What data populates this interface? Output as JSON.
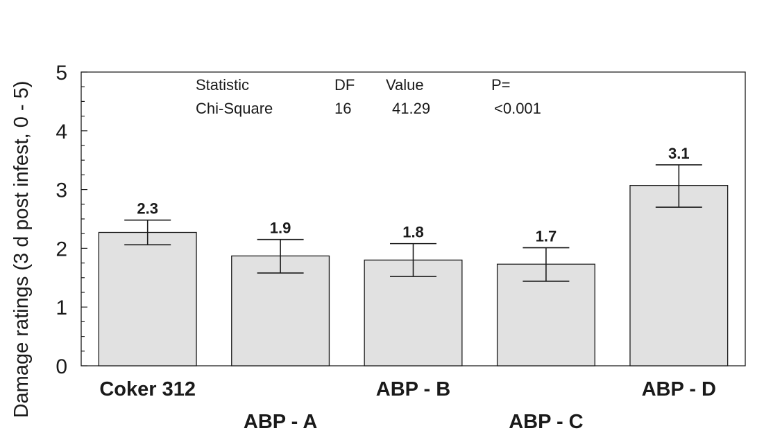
{
  "chart_data": {
    "type": "bar",
    "ylabel": "Damage ratings (3 d  post infest, 0 - 5)",
    "ylim": [
      0,
      5
    ],
    "yticks": [
      "0",
      "1",
      "2",
      "3",
      "4",
      "5"
    ],
    "minor_ticks_per_major": 4,
    "categories": [
      "Coker 312",
      "ABP - A",
      "ABP - B",
      "ABP - C",
      "ABP - D"
    ],
    "values": [
      2.27,
      1.87,
      1.8,
      1.73,
      3.07
    ],
    "error_low": [
      2.06,
      1.58,
      1.52,
      1.44,
      2.7
    ],
    "error_high": [
      2.48,
      2.15,
      2.08,
      2.01,
      3.42
    ],
    "data_labels": [
      "2.3",
      "1.9",
      "1.8",
      "1.7",
      "3.1"
    ],
    "bar_color": "#e1e1e1",
    "grid": false,
    "legend": "none",
    "stats_table": {
      "header": [
        "Statistic",
        "DF",
        "Value",
        "P="
      ],
      "row": [
        "Chi-Square",
        "16",
        "41.29",
        "<0.001"
      ]
    }
  }
}
